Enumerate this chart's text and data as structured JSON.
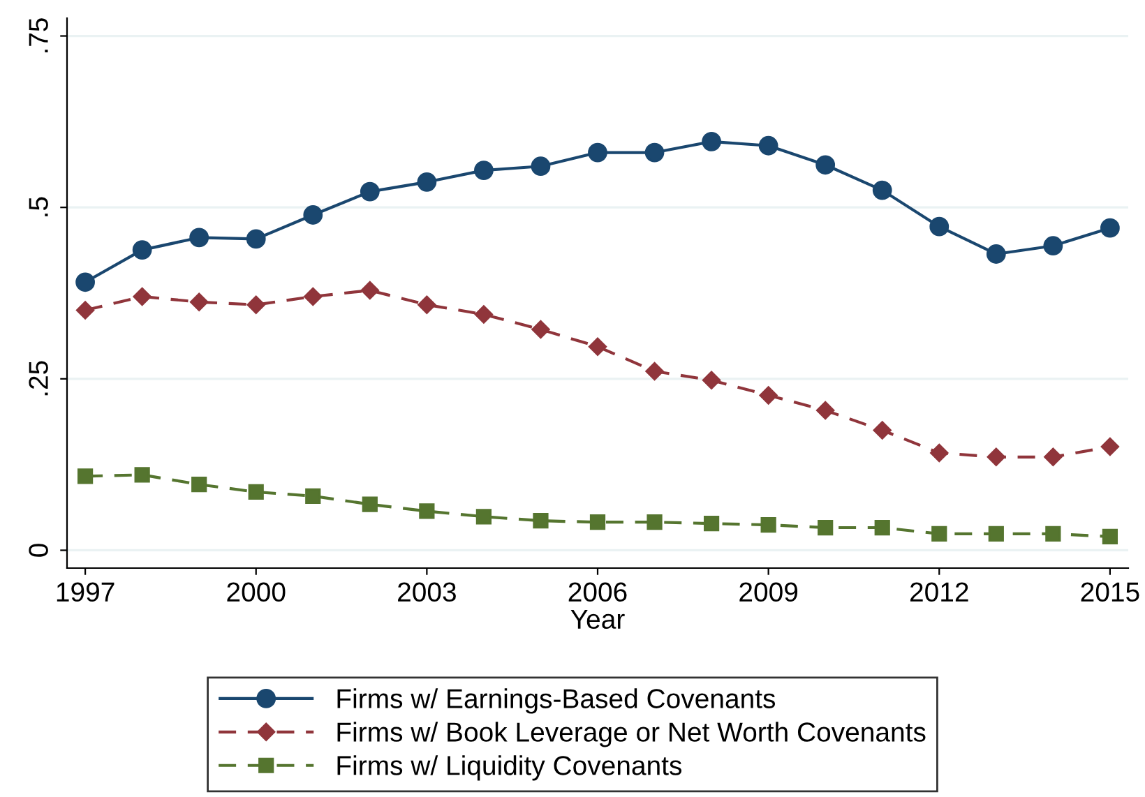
{
  "chart_data": {
    "type": "line",
    "xlabel": "Year",
    "x": [
      1997,
      1998,
      1999,
      2000,
      2001,
      2002,
      2003,
      2004,
      2005,
      2006,
      2007,
      2008,
      2009,
      2010,
      2011,
      2012,
      2013,
      2014,
      2015
    ],
    "series": [
      {
        "name": "Firms w/ Earnings-Based Covenants",
        "color": "#1a476f",
        "marker": "circle",
        "line_style": "solid",
        "values": [
          0.391,
          0.438,
          0.456,
          0.454,
          0.489,
          0.523,
          0.537,
          0.554,
          0.56,
          0.58,
          0.58,
          0.596,
          0.59,
          0.562,
          0.525,
          0.472,
          0.432,
          0.444,
          0.47
        ]
      },
      {
        "name": "Firms w/ Book Leverage or Net Worth Covenants",
        "color": "#90353b",
        "marker": "diamond",
        "line_style": "dashed",
        "values": [
          0.35,
          0.37,
          0.362,
          0.358,
          0.37,
          0.379,
          0.358,
          0.344,
          0.322,
          0.297,
          0.261,
          0.248,
          0.226,
          0.204,
          0.175,
          0.142,
          0.136,
          0.136,
          0.151
        ]
      },
      {
        "name": "Firms w/ Liquidity Covenants",
        "color": "#55752f",
        "marker": "square",
        "line_style": "dashed",
        "values": [
          0.108,
          0.11,
          0.096,
          0.085,
          0.079,
          0.067,
          0.057,
          0.049,
          0.043,
          0.041,
          0.041,
          0.039,
          0.037,
          0.033,
          0.033,
          0.024,
          0.024,
          0.024,
          0.02
        ]
      }
    ],
    "xlim": [
      1996.68,
      2015.32
    ],
    "xticks": [
      1997,
      2000,
      2003,
      2006,
      2009,
      2012,
      2015
    ],
    "ylim": [
      -0.026,
      0.776
    ],
    "yticks": [
      {
        "value": 0,
        "label": "0"
      },
      {
        "value": 0.25,
        "label": ".25"
      },
      {
        "value": 0.5,
        "label": ".5"
      },
      {
        "value": 0.75,
        "label": ".75"
      }
    ],
    "grid": "y",
    "legend": "bottom"
  }
}
